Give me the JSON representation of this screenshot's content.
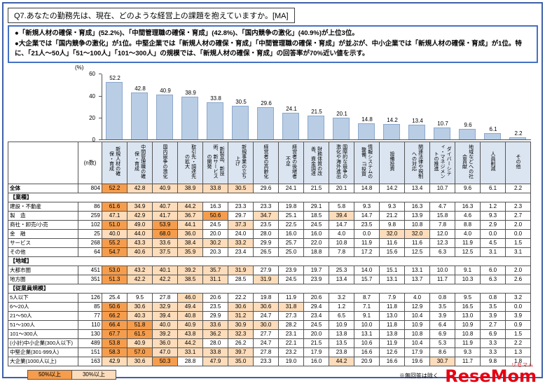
{
  "title": "Q7.あなたの勤務先は、現在、どのような経営上の課題を抱えていますか。[MA]",
  "summary": {
    "line1": "●「新規人材の確保・育成」(52.2%)、「中間管理職の確保・育成」(42.8%)、「国内競争の激化」(40.9%)が上位3位。",
    "line2": "●大企業では「国内競争の激化」が1位。中堅企業では「新規人材の確保・育成」「中間管理職の確保・育成」が並ぶが、中小企業では「新規人材の確保・育成」が1位。特に、「21人〜50人」「51〜100人」「101〜300人」の規模では、「新規人材の確保・育成」の回答率が70%近い値を示す。"
  },
  "chart_data": {
    "type": "bar",
    "title": "",
    "unit_label": "(%)",
    "xlabel": "",
    "ylabel": "(%)",
    "ylim": [
      0,
      60
    ],
    "yticks": [
      0,
      20,
      40,
      60
    ],
    "grid": false,
    "legend_position": "none",
    "bar_color": "#b9cde5",
    "categories": [
      "新規人材の確保・育成",
      "中間管理職の確保・育成",
      "国内競争の激化",
      "取引先・調達先の拡大",
      "新製品、新技術、新サービスの開発",
      "新規事業の立ち上げ",
      "経営者の高齢化",
      "経営者の後継者不足",
      "財務体質の改善、資金調達",
      "国際的な競争の激化や海外進出",
      "情報システムの整備、IT投資",
      "設備投資",
      "関連法律や規制への対応",
      "ダイバーシティ・マネジメントの推進",
      "地域などへの社会貢献",
      "人員削減",
      "その他"
    ],
    "values": [
      52.2,
      42.8,
      40.9,
      38.9,
      33.8,
      30.5,
      29.6,
      24.1,
      21.5,
      20.1,
      14.8,
      14.2,
      13.4,
      10.7,
      9.6,
      6.1,
      2.2
    ]
  },
  "table": {
    "n_header": "(n数)",
    "rows": [
      {
        "label": "全体",
        "n": 804,
        "bold": true,
        "values": [
          52.2,
          42.8,
          40.9,
          38.9,
          33.8,
          30.5,
          29.6,
          24.1,
          21.5,
          20.1,
          14.8,
          14.2,
          13.4,
          10.7,
          9.6,
          6.1,
          2.2
        ]
      },
      {
        "section": "【業種】"
      },
      {
        "label": "建設・不動産",
        "n": 86,
        "values": [
          61.6,
          34.9,
          40.7,
          44.2,
          16.3,
          23.3,
          23.3,
          19.8,
          29.1,
          5.8,
          9.3,
          9.3,
          16.3,
          4.7,
          16.3,
          1.2,
          2.3
        ]
      },
      {
        "label": "製　造",
        "n": 259,
        "values": [
          47.1,
          42.9,
          41.7,
          36.7,
          50.6,
          29.7,
          34.7,
          25.1,
          18.5,
          39.4,
          14.7,
          21.2,
          13.9,
          15.8,
          4.6,
          9.3,
          2.7
        ]
      },
      {
        "label": "商社・卸売/小売",
        "n": 102,
        "values": [
          51.0,
          49.0,
          53.9,
          44.1,
          24.5,
          37.3,
          23.5,
          22.5,
          24.5,
          14.7,
          23.5,
          9.8,
          10.8,
          7.8,
          8.8,
          2.9,
          2.0
        ]
      },
      {
        "label": "金　融",
        "n": 25,
        "values": [
          40.0,
          44.0,
          68.0,
          36.0,
          20.0,
          24.0,
          28.0,
          16.0,
          16.0,
          4.0,
          0.0,
          32.0,
          32.0,
          12.0,
          4.0,
          0.0,
          0.0
        ]
      },
      {
        "label": "サービス",
        "n": 268,
        "values": [
          55.2,
          43.3,
          33.6,
          38.4,
          30.2,
          33.2,
          29.9,
          25.7,
          22.0,
          10.8,
          11.9,
          11.6,
          11.6,
          12.3,
          11.9,
          4.5,
          1.5
        ]
      },
      {
        "label": "その他",
        "n": 64,
        "values": [
          54.7,
          40.6,
          37.5,
          35.9,
          20.3,
          23.4,
          26.5,
          25.0,
          18.8,
          7.8,
          17.2,
          15.6,
          12.5,
          6.3,
          12.5,
          3.1,
          3.1
        ]
      },
      {
        "section": "【地域】"
      },
      {
        "label": "大都市圏",
        "n": 451,
        "values": [
          53.0,
          43.2,
          40.1,
          39.2,
          35.7,
          31.9,
          27.9,
          23.9,
          19.7,
          25.3,
          14.0,
          15.1,
          13.1,
          10.0,
          9.1,
          6.0,
          2.0
        ]
      },
      {
        "label": "地方圏",
        "n": 351,
        "values": [
          51.3,
          42.2,
          42.2,
          38.5,
          31.1,
          28.5,
          31.9,
          24.5,
          23.9,
          13.4,
          15.7,
          13.1,
          13.7,
          11.7,
          10.3,
          6.3,
          2.6
        ]
      },
      {
        "section": "【従業員規模】"
      },
      {
        "label": "5人以下",
        "n": 126,
        "values": [
          25.4,
          9.5,
          27.8,
          46.0,
          20.6,
          22.2,
          19.8,
          11.9,
          20.6,
          3.2,
          8.7,
          7.9,
          4.0,
          0.8,
          9.5,
          0.8,
          3.2
        ]
      },
      {
        "label": "6〜20人",
        "n": 85,
        "values": [
          50.6,
          30.6,
          32.9,
          49.4,
          23.5,
          30.6,
          30.6,
          31.8,
          29.4,
          1.2,
          7.1,
          11.8,
          12.9,
          3.5,
          16.5,
          3.5,
          0.0
        ]
      },
      {
        "label": "21〜50人",
        "n": 77,
        "values": [
          66.2,
          40.3,
          39.4,
          40.8,
          29.9,
          31.2,
          24.7,
          27.3,
          23.4,
          6.5,
          9.1,
          13.0,
          10.4,
          3.9,
          13.0,
          3.9,
          3.9
        ]
      },
      {
        "label": "51〜100人",
        "n": 110,
        "values": [
          66.4,
          51.8,
          40.0,
          40.9,
          33.6,
          30.9,
          30.0,
          28.2,
          24.5,
          10.9,
          10.0,
          11.8,
          10.9,
          6.4,
          10.9,
          2.7,
          0.9
        ]
      },
      {
        "label": "101〜300人",
        "n": 130,
        "values": [
          67.7,
          61.5,
          39.2,
          43.8,
          36.2,
          32.3,
          27.7,
          23.1,
          20.0,
          13.8,
          13.1,
          13.8,
          10.8,
          6.9,
          10.8,
          6.9,
          1.5
        ]
      },
      {
        "label": "(小計)中小企業(300人以下)",
        "n": 489,
        "values": [
          53.8,
          40.9,
          36.0,
          44.2,
          28.0,
          26.2,
          24.7,
          22.1,
          21.5,
          13.5,
          10.6,
          11.9,
          10.4,
          5.3,
          11.9,
          3.3,
          2.2
        ]
      },
      {
        "label": "中堅企業(301-999人)",
        "n": 151,
        "values": [
          58.3,
          57.0,
          47.0,
          33.1,
          33.8,
          39.7,
          27.8,
          23.2,
          17.9,
          23.8,
          16.6,
          12.6,
          17.9,
          8.6,
          9.3,
          3.3,
          1.3
        ]
      },
      {
        "label": "大企業(1000人以上)",
        "n": 163,
        "values": [
          42.9,
          30.6,
          50.3,
          28.8,
          47.9,
          35.0,
          23.3,
          19.0,
          16.0,
          44.2,
          20.9,
          16.6,
          19.6,
          30.7,
          11.7,
          9.8,
          1.8
        ]
      }
    ]
  },
  "legend": [
    {
      "label": "50%以上",
      "color": "#f59d4d",
      "threshold": 50
    },
    {
      "label": "30%以上",
      "color": "#fcdcba",
      "threshold": 30
    }
  ],
  "footnote": "※無回答は除く",
  "logo": {
    "kana": "リセマム",
    "name": "ReseMom"
  }
}
